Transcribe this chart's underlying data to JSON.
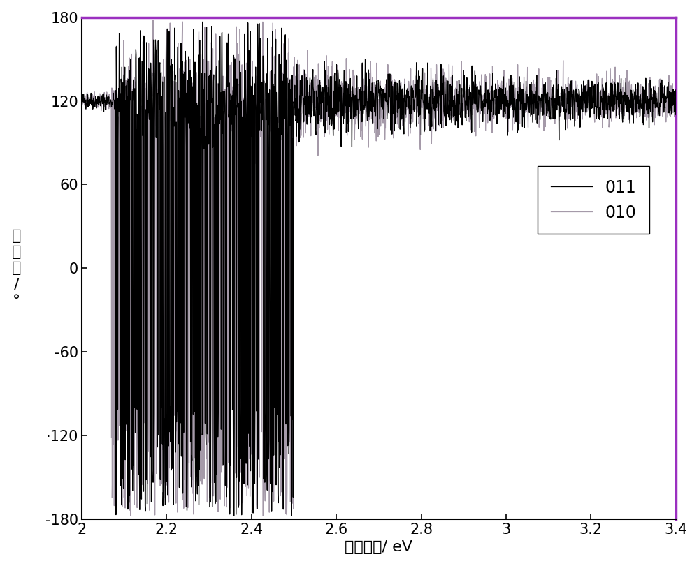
{
  "xlabel": "光子能量/ eV",
  "ylabel": "相\n位\n角\n/\n°",
  "xlim": [
    2.0,
    3.4
  ],
  "ylim": [
    -180,
    180
  ],
  "xticks": [
    2.0,
    2.2,
    2.4,
    2.6,
    2.8,
    3.0,
    3.2,
    3.4
  ],
  "yticks": [
    -180,
    -120,
    -60,
    0,
    60,
    120,
    180
  ],
  "legend_labels": [
    "011",
    "010"
  ],
  "line_color_011": "#000000",
  "line_color_010": "#9B8FA0",
  "stable_value_011": 120,
  "stable_value_010": 120,
  "chaotic_start_011": 2.08,
  "chaotic_start_010": 2.07,
  "chaotic_end_011": 2.5,
  "chaotic_end_010": 2.5,
  "border_color_top": "#9B30C0",
  "border_color_right": "#9B30C0",
  "border_color_left": "#000000",
  "border_color_bottom": "#000000",
  "background_color": "#ffffff"
}
